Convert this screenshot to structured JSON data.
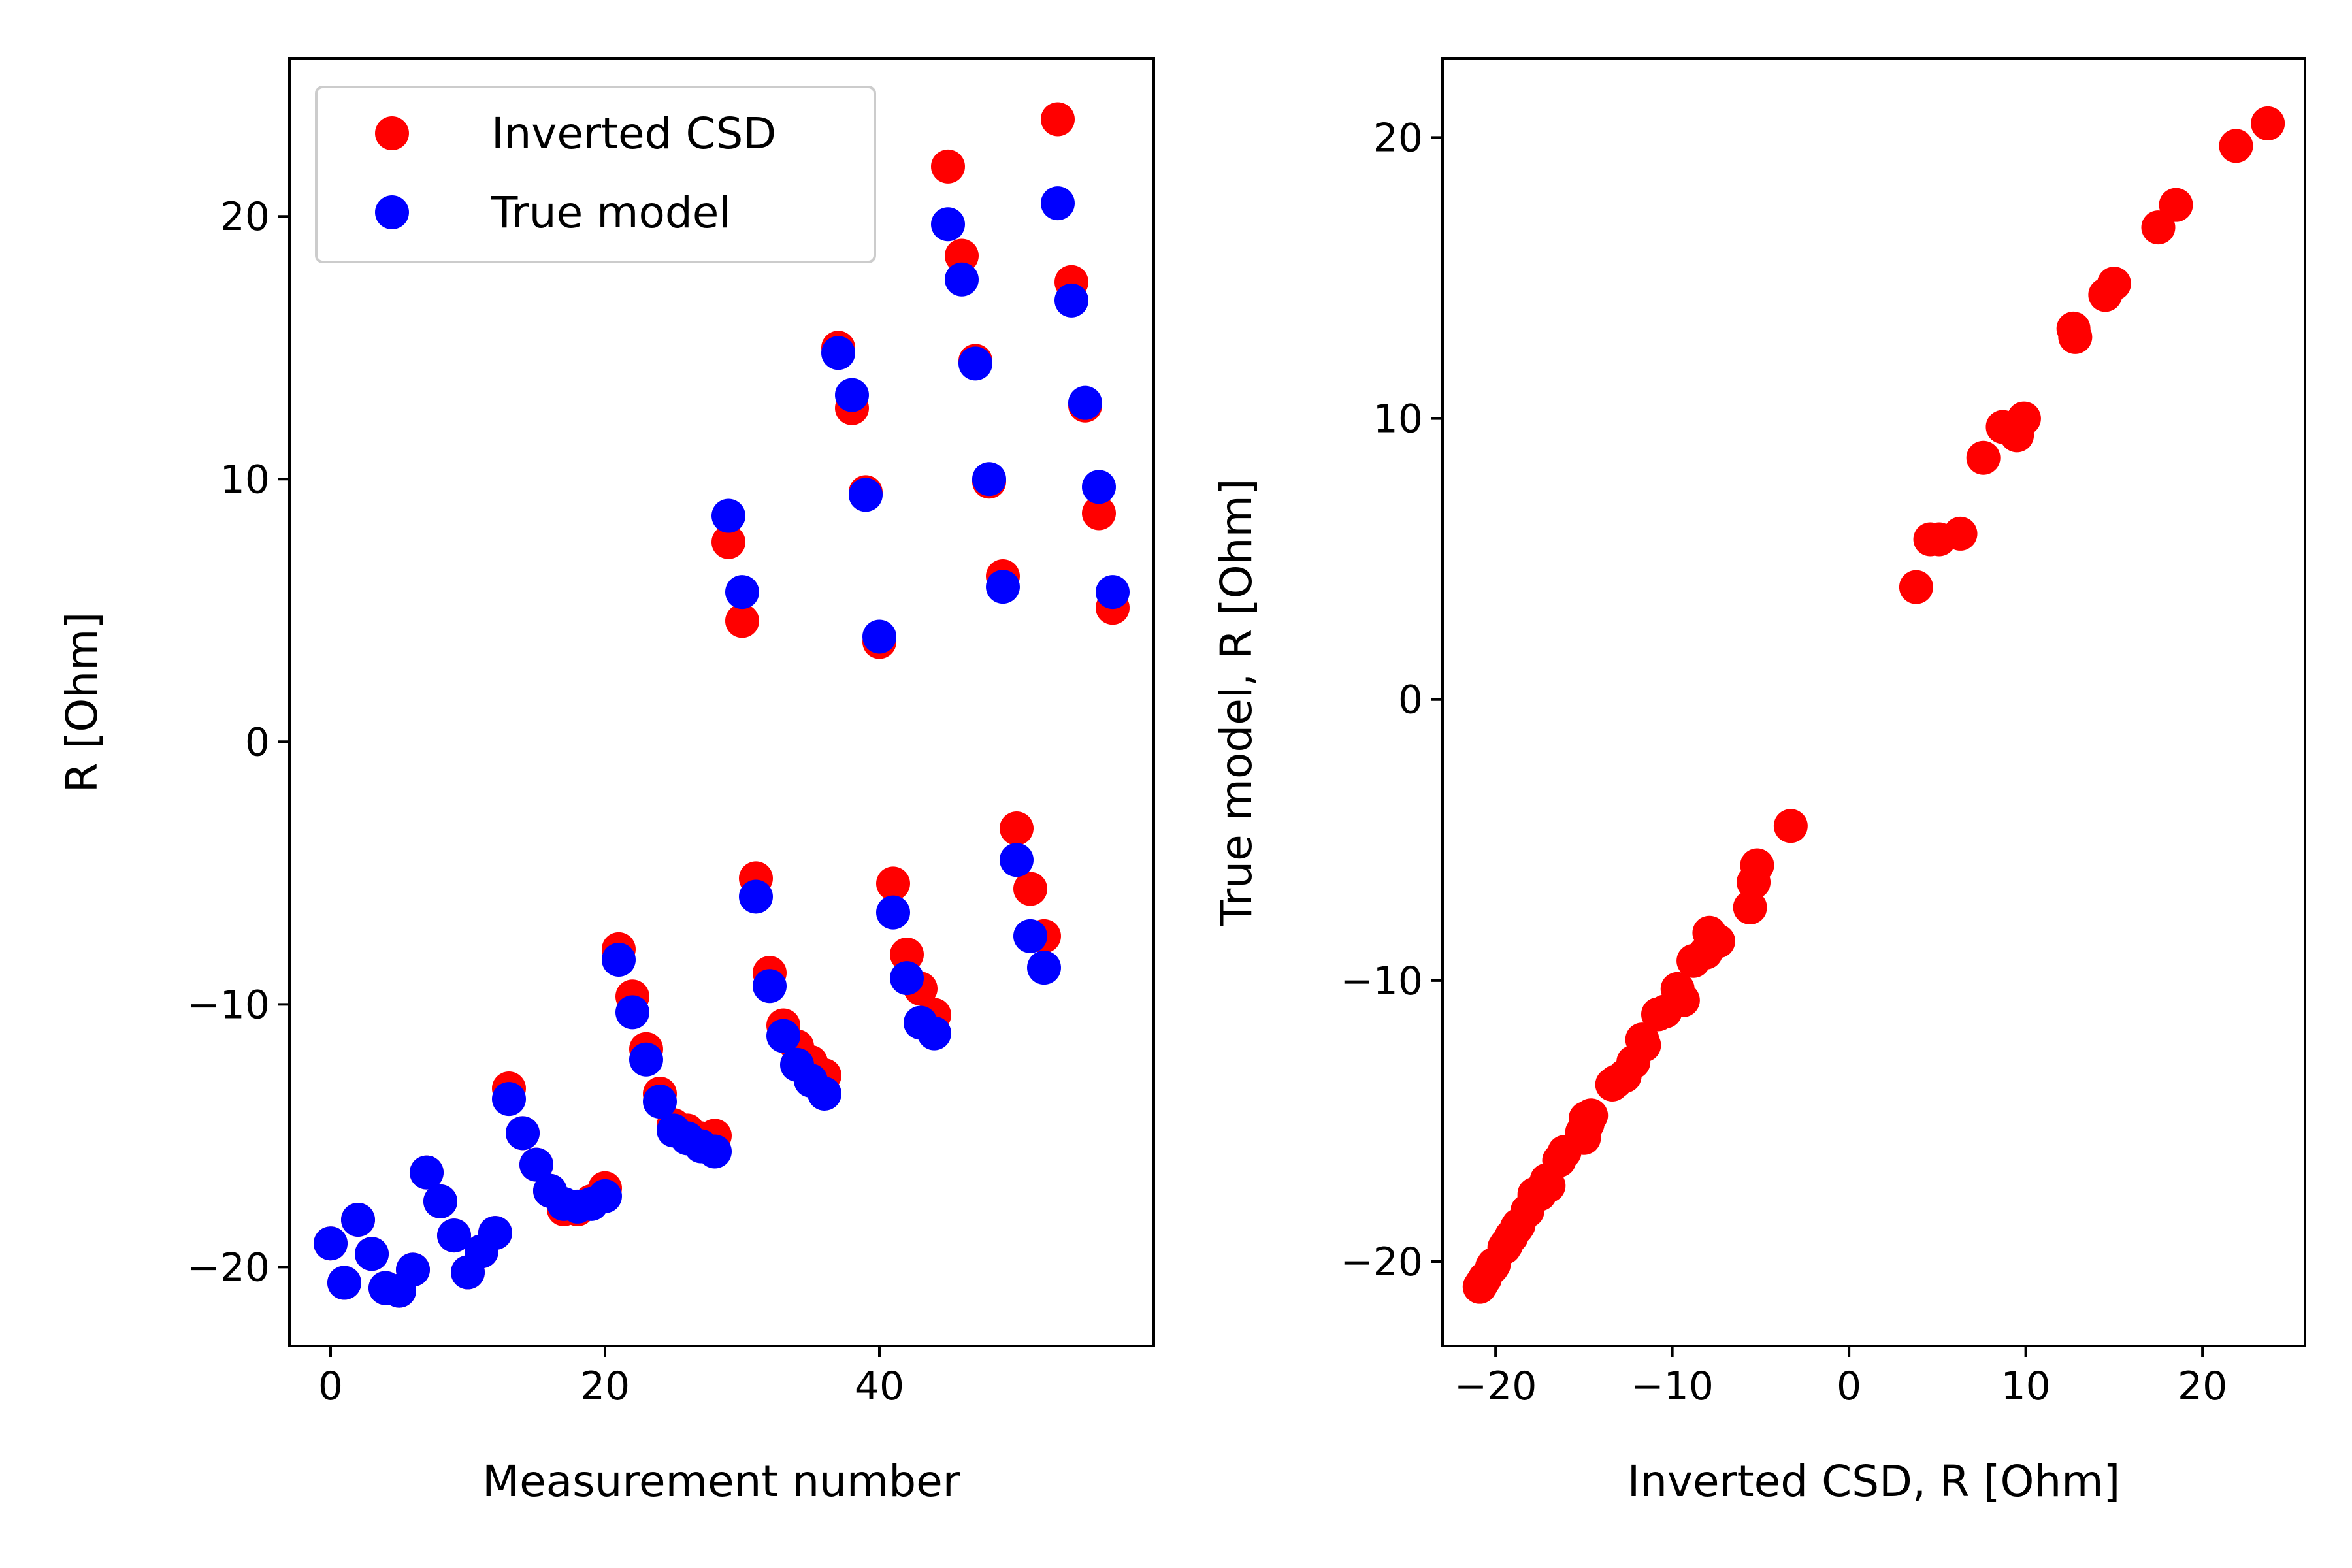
{
  "colors": {
    "inverted": "#ff0000",
    "true": "#0000ff",
    "axes": "#000000",
    "legend_border": "#cccccc"
  },
  "chart_data": [
    {
      "type": "scatter",
      "xlabel": "Measurement number",
      "ylabel": "R [Ohm]",
      "xlim": [
        -3,
        60
      ],
      "ylim": [
        -23.0,
        26.0
      ],
      "xticks": [
        0,
        20,
        40
      ],
      "xtick_labels": [
        "0",
        "20",
        "40"
      ],
      "yticks": [
        -20,
        -10,
        0,
        10,
        20
      ],
      "ytick_labels": [
        "−20",
        "−10",
        "0",
        "10",
        "20"
      ],
      "legend": {
        "position": "upper-left"
      },
      "x": [
        0,
        1,
        2,
        3,
        4,
        5,
        6,
        7,
        8,
        9,
        10,
        11,
        12,
        13,
        14,
        15,
        16,
        17,
        18,
        19,
        20,
        21,
        22,
        23,
        24,
        25,
        26,
        27,
        28,
        29,
        30,
        31,
        32,
        33,
        34,
        35,
        36,
        37,
        38,
        39,
        40,
        41,
        42,
        43,
        44,
        45,
        46,
        47,
        48,
        49,
        50,
        51,
        52,
        53,
        54,
        55,
        56,
        57
      ],
      "series": [
        {
          "name": "Inverted CSD",
          "values": [
            -19.1,
            -20.6,
            -18.2,
            -19.5,
            -20.8,
            -20.9,
            -20.1,
            -16.4,
            -17.5,
            -18.8,
            -20.2,
            -19.4,
            -18.7,
            -13.2,
            -14.9,
            -16.1,
            -17.1,
            -17.8,
            -17.8,
            -17.5,
            -17.0,
            -7.9,
            -9.7,
            -11.7,
            -13.4,
            -14.6,
            -14.8,
            -15.1,
            -15.0,
            7.6,
            4.6,
            -5.2,
            -8.8,
            -10.8,
            -11.6,
            -12.2,
            -12.7,
            15.0,
            12.7,
            9.5,
            3.8,
            -5.4,
            -8.1,
            -9.4,
            -10.4,
            21.9,
            18.5,
            14.5,
            9.9,
            6.3,
            -3.3,
            -5.6,
            -7.4,
            23.7,
            17.5,
            12.8,
            8.7,
            5.1
          ]
        },
        {
          "name": "True model",
          "values": [
            -19.1,
            -20.6,
            -18.2,
            -19.5,
            -20.8,
            -20.9,
            -20.1,
            -16.4,
            -17.5,
            -18.8,
            -20.2,
            -19.4,
            -18.7,
            -13.6,
            -14.9,
            -16.1,
            -17.1,
            -17.6,
            -17.7,
            -17.6,
            -17.3,
            -8.3,
            -10.3,
            -12.1,
            -13.7,
            -14.8,
            -15.1,
            -15.4,
            -15.6,
            8.6,
            5.7,
            -5.9,
            -9.3,
            -11.2,
            -12.3,
            -12.9,
            -13.4,
            14.8,
            13.2,
            9.4,
            4.0,
            -6.5,
            -9.0,
            -10.7,
            -11.1,
            19.7,
            17.6,
            14.4,
            10.0,
            5.9,
            -4.5,
            -7.4,
            -8.6,
            20.5,
            16.8,
            12.9,
            9.7,
            5.7
          ]
        }
      ]
    },
    {
      "type": "scatter",
      "xlabel": "Inverted CSD, R [Ohm]",
      "ylabel": "True model, R [Ohm]",
      "xlim": [
        -23.0,
        25.8
      ],
      "ylim": [
        -23.0,
        22.8
      ],
      "xticks": [
        -20,
        -10,
        0,
        10,
        20
      ],
      "xtick_labels": [
        "−20",
        "−10",
        "0",
        "10",
        "20"
      ],
      "yticks": [
        -20,
        -10,
        0,
        10,
        20
      ],
      "ytick_labels": [
        "−20",
        "−10",
        "0",
        "10",
        "20"
      ],
      "series": [
        {
          "x_from": "Inverted CSD",
          "y_from": "True model"
        }
      ]
    }
  ]
}
